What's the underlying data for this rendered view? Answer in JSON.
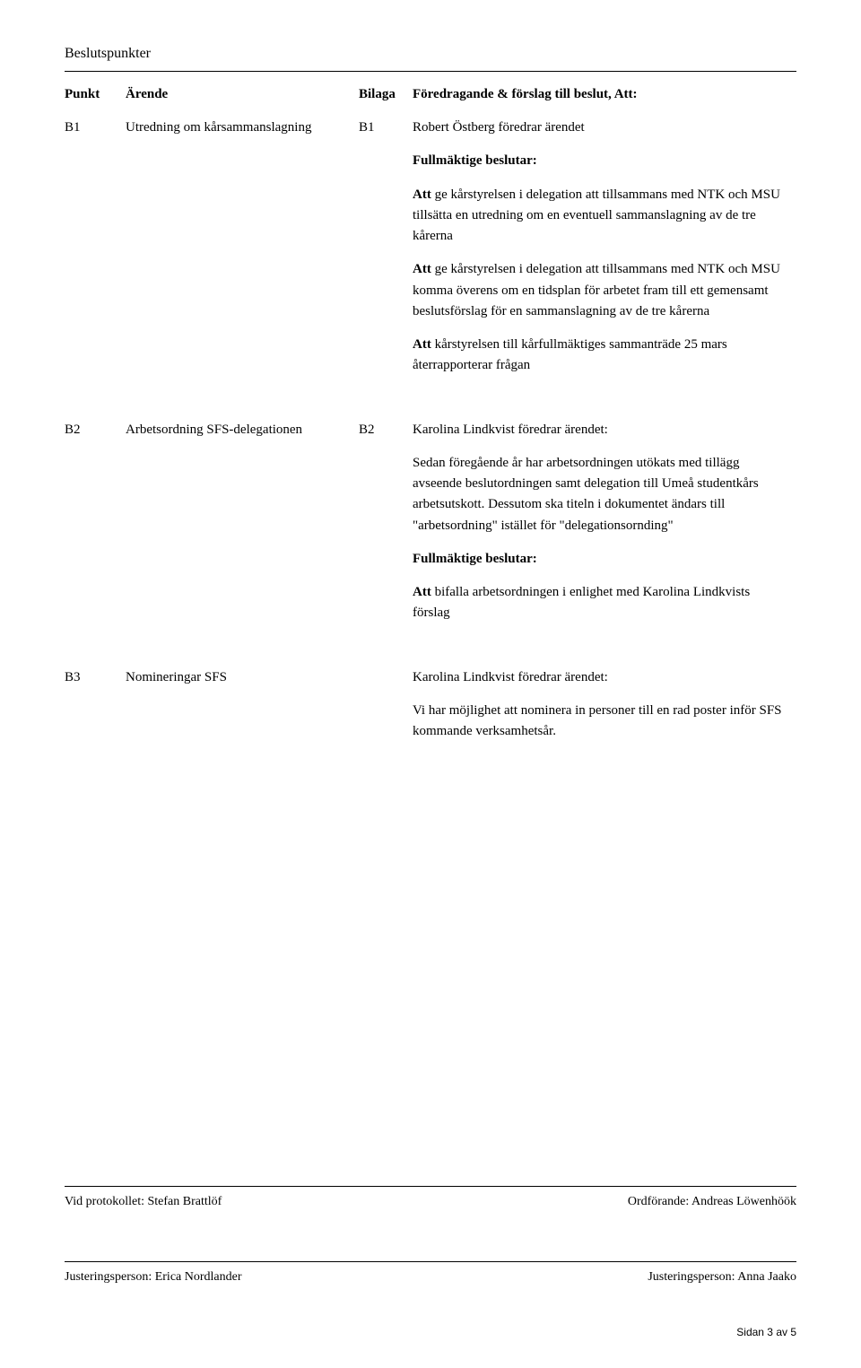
{
  "section_heading": "Beslutspunkter",
  "columns": {
    "c1": "Punkt",
    "c2": "Ärende",
    "c3": "Bilaga",
    "c4": "Föredragande & förslag till beslut, Att:"
  },
  "rows": {
    "b1": {
      "punkt": "B1",
      "arende": "Utredning om kårsammanslagning",
      "bilaga": "B1",
      "p1": "Robert Östberg föredrar ärendet",
      "p2": "Fullmäktige beslutar:",
      "p3_lead": "Att",
      "p3_rest": " ge kårstyrelsen i delegation att tillsammans med NTK och MSU tillsätta en utredning om en eventuell sammanslagning av de tre kårerna",
      "p4_lead": "Att",
      "p4_rest": " ge kårstyrelsen i delegation att tillsammans med NTK och MSU komma överens om en tidsplan för arbetet fram till ett gemensamt beslutsförslag för en sammanslagning av de tre kårerna",
      "p5_lead": "Att",
      "p5_rest": " kårstyrelsen till kårfullmäktiges sammanträde 25 mars återrapporterar frågan"
    },
    "b2": {
      "punkt": "B2",
      "arende": "Arbetsordning SFS-delegationen",
      "bilaga": "B2",
      "p1": "Karolina Lindkvist föredrar ärendet:",
      "p2": "Sedan föregående år har arbetsordningen utökats med tillägg avseende beslutordningen samt delegation till Umeå studentkårs arbetsutskott. Dessutom ska titeln i dokumentet ändars till \"arbetsordning\" istället för \"delegationsornding\"",
      "p3": "Fullmäktige beslutar:",
      "p4_lead": "Att",
      "p4_rest": " bifalla arbetsordningen i enlighet med Karolina Lindkvists förslag"
    },
    "b3": {
      "punkt": "B3",
      "arende": "Nomineringar SFS",
      "bilaga": "",
      "p1": "Karolina Lindkvist föredrar ärendet:",
      "p2": "Vi har möjlighet att nominera in personer till en rad poster inför SFS kommande verksamhetsår."
    }
  },
  "sig": {
    "row1_left": "Vid protokollet: Stefan Brattlöf",
    "row1_right": "Ordförande: Andreas Löwenhöök",
    "row2_left": "Justeringsperson: Erica Nordlander",
    "row2_right": "Justeringsperson: Anna Jaako"
  },
  "page_number": "Sidan 3 av 5"
}
